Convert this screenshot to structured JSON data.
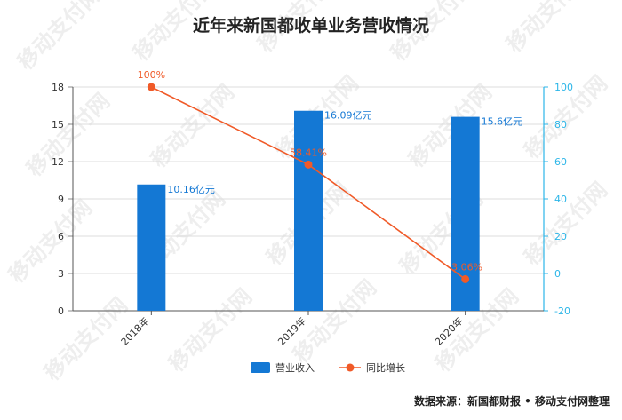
{
  "title": "近年来新国都收单业务营收情况",
  "source": "数据来源：新国都财报 • 移动支付网整理",
  "watermark": "移动支付网",
  "chart_data": {
    "type": "bar+line",
    "categories": [
      "2018年",
      "2019年",
      "2020年"
    ],
    "series": [
      {
        "name": "营业收入",
        "type": "bar",
        "axis": "left",
        "values": [
          10.16,
          16.09,
          15.6
        ],
        "labels": [
          "10.16亿元",
          "16.09亿元",
          "15.6亿元"
        ],
        "color": "#1478d4"
      },
      {
        "name": "同比增长",
        "type": "line",
        "axis": "right",
        "values": [
          100,
          58.41,
          -3.06
        ],
        "labels": [
          "100%",
          "58.41%",
          "-3.06%"
        ],
        "color": "#f05a28"
      }
    ],
    "y_left": {
      "min": 0,
      "max": 18,
      "ticks": [
        "0",
        "3",
        "6",
        "9",
        "12",
        "15",
        "18"
      ]
    },
    "y_right": {
      "min": -20,
      "max": 100,
      "ticks": [
        "-20",
        "0",
        "20",
        "40",
        "60",
        "80",
        "100"
      ],
      "color": "#2cb6e8"
    },
    "grid": true,
    "legend_position": "bottom"
  }
}
